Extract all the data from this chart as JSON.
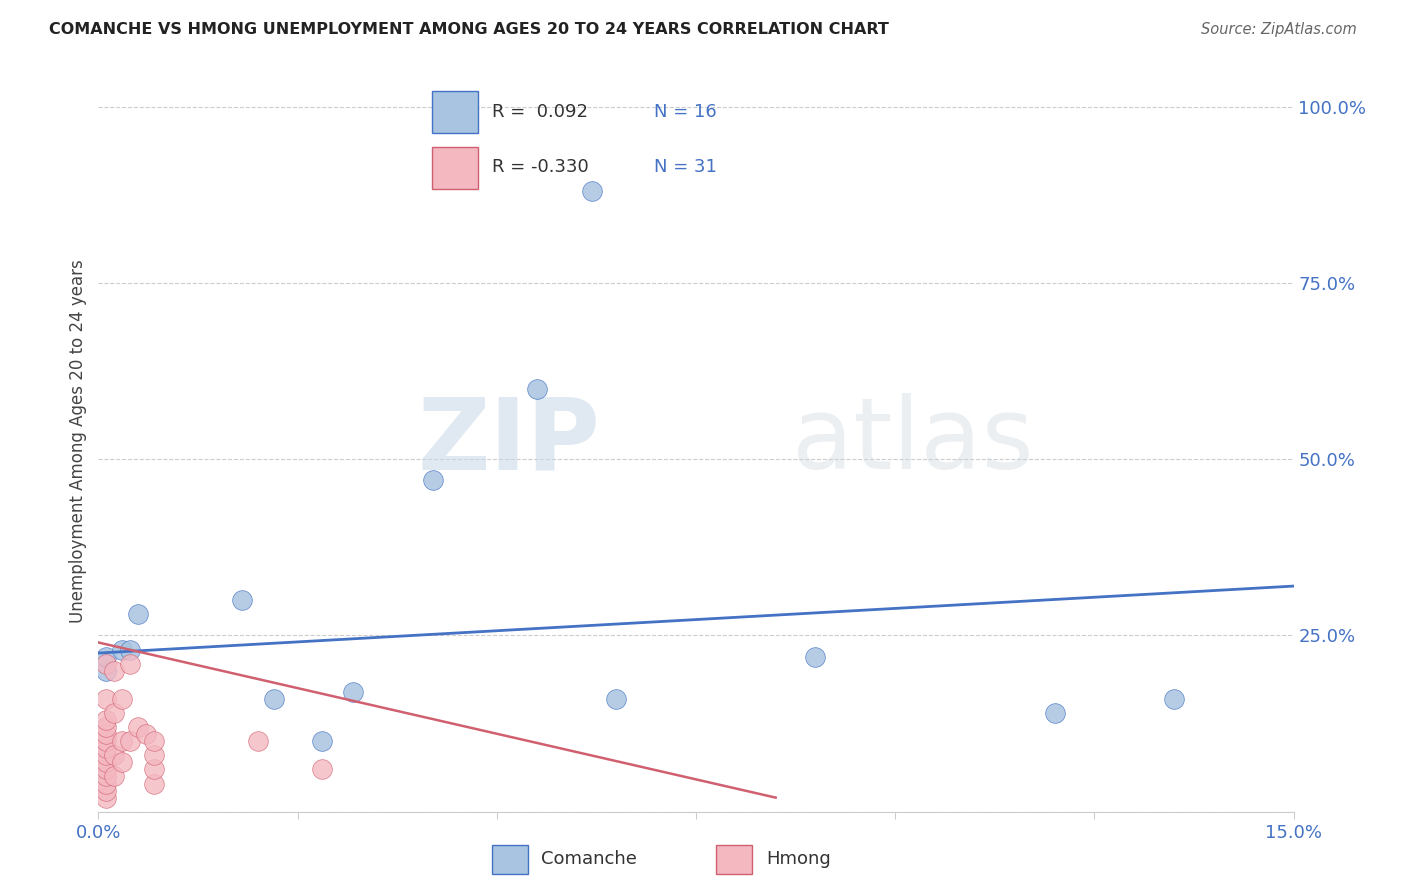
{
  "title": "COMANCHE VS HMONG UNEMPLOYMENT AMONG AGES 20 TO 24 YEARS CORRELATION CHART",
  "source": "Source: ZipAtlas.com",
  "ylabel": "Unemployment Among Ages 20 to 24 years",
  "xlim": [
    0.0,
    0.15
  ],
  "ylim": [
    0.0,
    1.05
  ],
  "xticks": [
    0.0,
    0.025,
    0.05,
    0.075,
    0.1,
    0.125,
    0.15
  ],
  "xticklabels": [
    "0.0%",
    "",
    "",
    "",
    "",
    "",
    "15.0%"
  ],
  "yticks_right": [
    0.0,
    0.25,
    0.5,
    0.75,
    1.0
  ],
  "yticklabels_right": [
    "",
    "25.0%",
    "50.0%",
    "75.0%",
    "100.0%"
  ],
  "grid_color": "#cccccc",
  "background_color": "#ffffff",
  "watermark_zip": "ZIP",
  "watermark_atlas": "atlas",
  "comanche_color": "#a8c4e0",
  "comanche_line_color": "#4472c4",
  "hmong_color": "#f4b8c1",
  "hmong_line_color": "#d06070",
  "comanche_R": 0.092,
  "comanche_N": 16,
  "hmong_R": -0.33,
  "hmong_N": 31,
  "comanche_x": [
    0.001,
    0.001,
    0.003,
    0.004,
    0.005,
    0.018,
    0.022,
    0.028,
    0.032,
    0.042,
    0.055,
    0.062,
    0.065,
    0.09,
    0.12,
    0.135
  ],
  "comanche_y": [
    0.2,
    0.22,
    0.23,
    0.23,
    0.28,
    0.3,
    0.16,
    0.1,
    0.17,
    0.47,
    0.6,
    0.88,
    0.16,
    0.22,
    0.14,
    0.16
  ],
  "hmong_x": [
    0.001,
    0.001,
    0.001,
    0.001,
    0.001,
    0.001,
    0.001,
    0.001,
    0.001,
    0.001,
    0.001,
    0.001,
    0.001,
    0.001,
    0.002,
    0.002,
    0.002,
    0.002,
    0.003,
    0.003,
    0.003,
    0.004,
    0.004,
    0.005,
    0.006,
    0.007,
    0.007,
    0.007,
    0.007,
    0.02,
    0.028
  ],
  "hmong_y": [
    0.02,
    0.03,
    0.04,
    0.05,
    0.06,
    0.07,
    0.08,
    0.09,
    0.1,
    0.11,
    0.12,
    0.13,
    0.16,
    0.21,
    0.05,
    0.08,
    0.14,
    0.2,
    0.07,
    0.1,
    0.16,
    0.1,
    0.21,
    0.12,
    0.11,
    0.04,
    0.06,
    0.08,
    0.1,
    0.1,
    0.06
  ],
  "comanche_line_x": [
    0.0,
    0.15
  ],
  "comanche_line_y": [
    0.225,
    0.32
  ],
  "hmong_line_x": [
    0.0,
    0.085
  ],
  "hmong_line_y": [
    0.24,
    0.02
  ]
}
